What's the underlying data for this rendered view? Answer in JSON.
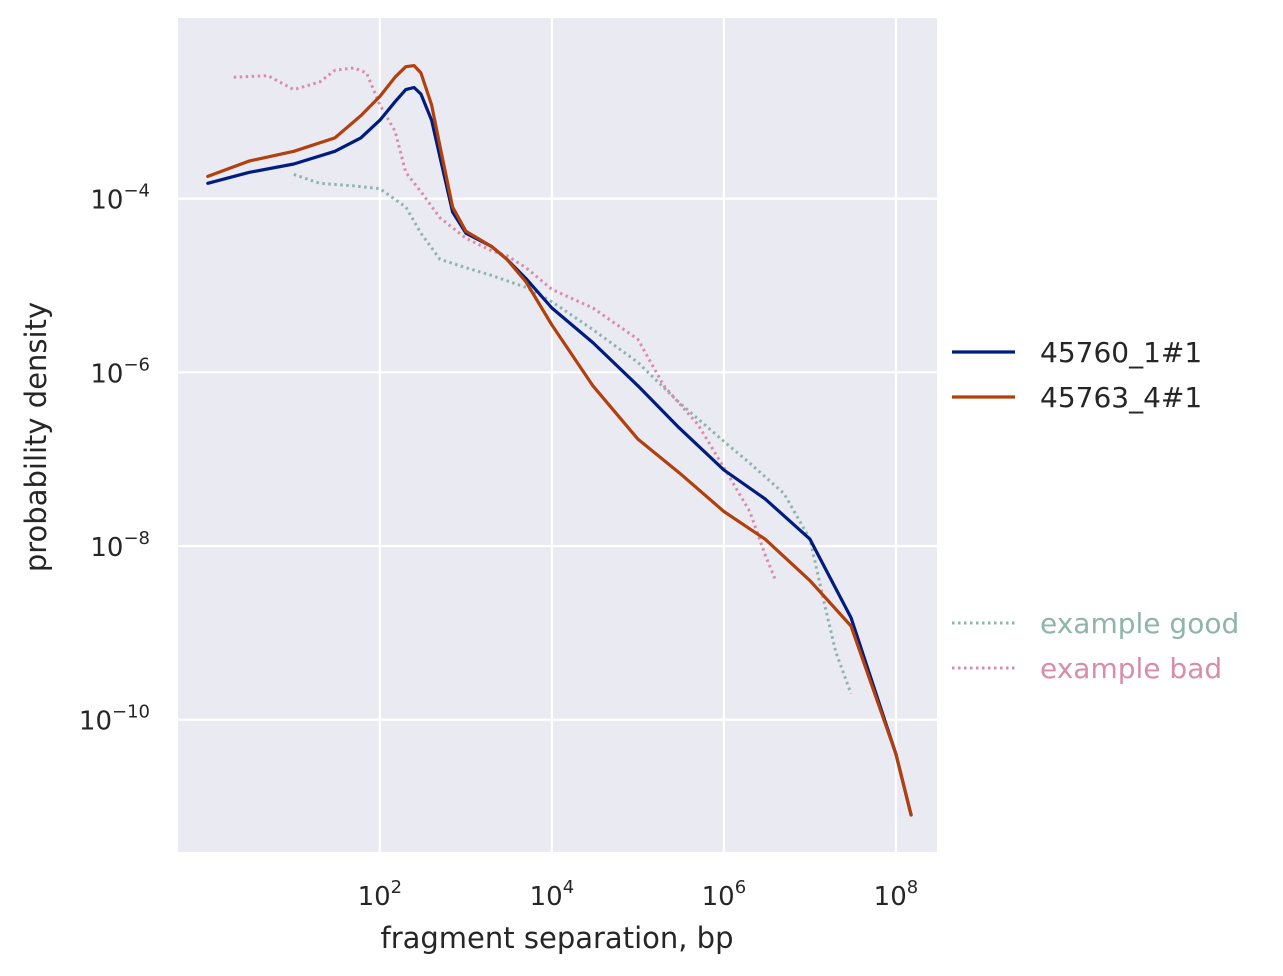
{
  "chart_data": {
    "type": "line",
    "title": "",
    "xlabel": "fragment separation, bp",
    "ylabel": "probability density",
    "xscale": "log",
    "yscale": "log",
    "xlim": [
      0.45,
      300000000
    ],
    "ylim": [
      3e-12,
      0.012
    ],
    "grid": true,
    "x_ticks": [
      {
        "value": 100,
        "base": "10",
        "exp": "2"
      },
      {
        "value": 10000,
        "base": "10",
        "exp": "4"
      },
      {
        "value": 1000000,
        "base": "10",
        "exp": "6"
      },
      {
        "value": 100000000,
        "base": "10",
        "exp": "8"
      }
    ],
    "y_ticks": [
      {
        "value": 0.0001,
        "base": "10",
        "exp": "−4"
      },
      {
        "value": 1e-06,
        "base": "10",
        "exp": "−6"
      },
      {
        "value": 1e-08,
        "base": "10",
        "exp": "−8"
      },
      {
        "value": 1e-10,
        "base": "10",
        "exp": "−10"
      }
    ],
    "legend_placement": "right",
    "series": [
      {
        "name": "45760_1#1",
        "color": "#001c7f",
        "style": "solid",
        "x": [
          1,
          3,
          10,
          30,
          60,
          100,
          150,
          200,
          250,
          300,
          400,
          500,
          700,
          1000,
          2000,
          3000,
          5000,
          10000,
          30000,
          100000,
          300000,
          1000000,
          3000000,
          10000000,
          30000000,
          100000000,
          150000000
        ],
        "y": [
          0.00015,
          0.0002,
          0.00025,
          0.00035,
          0.0005,
          0.0008,
          0.0013,
          0.0018,
          0.0019,
          0.0016,
          0.0008,
          0.0003,
          7e-05,
          4e-05,
          2.8e-05,
          2e-05,
          1.2e-05,
          5.5e-06,
          2.2e-06,
          7e-07,
          2.3e-07,
          7.5e-08,
          3.5e-08,
          1.2e-08,
          1.5e-09,
          4e-11,
          8e-12
        ]
      },
      {
        "name": "45763_4#1",
        "color": "#b1400d",
        "style": "solid",
        "x": [
          1,
          3,
          10,
          30,
          60,
          100,
          150,
          200,
          250,
          300,
          400,
          500,
          700,
          1000,
          2000,
          3000,
          5000,
          10000,
          30000,
          100000,
          300000,
          1000000,
          3000000,
          10000000,
          30000000,
          100000000,
          150000000
        ],
        "y": [
          0.00018,
          0.00027,
          0.00035,
          0.0005,
          0.0009,
          0.0015,
          0.0025,
          0.0033,
          0.0034,
          0.0028,
          0.0012,
          0.0004,
          8e-05,
          4.2e-05,
          2.8e-05,
          2e-05,
          1.1e-05,
          3.5e-06,
          7e-07,
          1.7e-07,
          7e-08,
          2.5e-08,
          1.2e-08,
          4e-09,
          1.2e-09,
          4e-11,
          8e-12
        ]
      },
      {
        "name": "example good",
        "color": "#8fb4ab",
        "style": "dotted",
        "x": [
          10,
          20,
          50,
          100,
          200,
          300,
          500,
          1000,
          2000,
          5000,
          10000,
          30000,
          100000,
          300000,
          1000000,
          2000000,
          5000000,
          10000000,
          15000000,
          20000000,
          30000000
        ],
        "y": [
          0.00019,
          0.00015,
          0.00014,
          0.00013,
          8e-05,
          4e-05,
          2e-05,
          1.6e-05,
          1.3e-05,
          9.5e-06,
          6.5e-06,
          3.1e-06,
          1.3e-06,
          4.5e-07,
          1.6e-07,
          9e-08,
          4e-08,
          1.2e-08,
          2e-09,
          6e-10,
          2e-10
        ]
      },
      {
        "name": "example bad",
        "color": "#d88ea8",
        "style": "dotted",
        "x": [
          2,
          5,
          10,
          20,
          30,
          50,
          70,
          100,
          150,
          200,
          300,
          500,
          1000,
          2000,
          3000,
          5000,
          10000,
          30000,
          100000,
          200000,
          500000,
          1000000,
          2000000,
          3000000,
          4000000
        ],
        "y": [
          0.0025,
          0.0026,
          0.0018,
          0.0022,
          0.003,
          0.0032,
          0.0028,
          0.0012,
          0.0006,
          0.0002,
          0.00012,
          6e-05,
          3.5e-05,
          2.5e-05,
          2.2e-05,
          1.6e-05,
          9e-06,
          5.5e-06,
          2.4e-06,
          7e-07,
          2.5e-07,
          8e-08,
          2.5e-08,
          8e-09,
          4e-09
        ]
      }
    ]
  }
}
